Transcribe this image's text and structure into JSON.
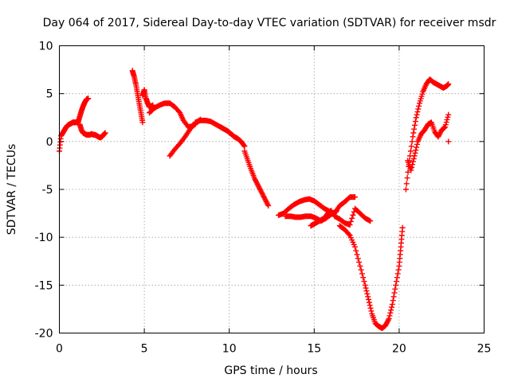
{
  "chart_data": {
    "type": "scatter",
    "title": "Day 064 of 2017, Sidereal Day-to-day VTEC variation (SDTVAR) for receiver msdr",
    "xlabel": "GPS time / hours",
    "ylabel": "SDTVAR / TECUs",
    "xlim": [
      0,
      25
    ],
    "ylim": [
      -20,
      10
    ],
    "xticks": [
      0,
      5,
      10,
      15,
      20,
      25
    ],
    "yticks": [
      -20,
      -15,
      -10,
      -5,
      0,
      5,
      10
    ],
    "grid": true,
    "marker": "plus",
    "color": "#ff0000",
    "segments": [
      {
        "x": [
          0.0,
          0.1,
          0.2,
          0.3,
          0.4,
          0.5,
          0.6,
          0.7,
          0.8,
          0.9,
          1.0,
          1.1
        ],
        "y": [
          -1.0,
          0.6,
          0.9,
          1.2,
          1.5,
          1.7,
          1.8,
          1.9,
          2.0,
          2.0,
          2.0,
          2.0
        ]
      },
      {
        "x": [
          1.1,
          1.2,
          1.3,
          1.4,
          1.5,
          1.6,
          1.7
        ],
        "y": [
          2.0,
          2.6,
          3.2,
          3.7,
          4.1,
          4.4,
          4.5
        ]
      },
      {
        "x": [
          1.2,
          1.3,
          1.4,
          1.5,
          1.6,
          1.7,
          1.8,
          1.9,
          2.0,
          2.1,
          2.2,
          2.3,
          2.4,
          2.5,
          2.6,
          2.7
        ],
        "y": [
          1.8,
          1.2,
          0.9,
          0.8,
          0.7,
          0.7,
          0.7,
          0.8,
          0.7,
          0.7,
          0.6,
          0.5,
          0.4,
          0.5,
          0.7,
          0.9
        ]
      },
      {
        "x": [
          4.3,
          4.4,
          4.5,
          4.6,
          4.7,
          4.8,
          4.9
        ],
        "y": [
          7.4,
          6.8,
          6.0,
          5.0,
          4.0,
          3.0,
          2.0
        ]
      },
      {
        "x": [
          4.9,
          5.0,
          5.1,
          5.2,
          5.3,
          5.5
        ],
        "y": [
          4.8,
          5.4,
          4.5,
          4.0,
          3.6,
          3.8
        ]
      },
      {
        "x": [
          5.3,
          5.6,
          5.9,
          6.2,
          6.5,
          6.8,
          7.1,
          7.3,
          7.6,
          7.8,
          8.0
        ],
        "y": [
          3.0,
          3.5,
          3.8,
          4.0,
          4.0,
          3.6,
          3.0,
          2.2,
          1.5,
          1.6,
          1.8
        ]
      },
      {
        "x": [
          6.5,
          6.8,
          7.1,
          7.4,
          7.7,
          8.0,
          8.3
        ],
        "y": [
          -1.5,
          -0.8,
          -0.2,
          0.5,
          1.3,
          1.9,
          2.3
        ]
      },
      {
        "x": [
          8.0,
          8.3,
          8.6,
          8.9,
          9.2,
          9.5
        ],
        "y": [
          2.0,
          2.2,
          2.2,
          2.1,
          1.8,
          1.5
        ]
      },
      {
        "x": [
          9.5,
          9.7,
          9.9,
          10.1,
          10.3,
          10.5,
          10.7,
          10.9
        ],
        "y": [
          1.5,
          1.3,
          1.1,
          0.8,
          0.5,
          0.3,
          0.0,
          -0.5
        ]
      },
      {
        "x": [
          10.9,
          11.1,
          11.3,
          11.5,
          11.7,
          11.9,
          12.1,
          12.3
        ],
        "y": [
          -1.0,
          -2.0,
          -3.0,
          -3.9,
          -4.6,
          -5.3,
          -6.0,
          -6.7
        ]
      },
      {
        "x": [
          12.9,
          13.2,
          13.5,
          13.8,
          14.1,
          14.4,
          14.7,
          15.0,
          15.3,
          15.6,
          15.9,
          16.2,
          16.5,
          16.8,
          17.1,
          17.4
        ],
        "y": [
          -7.7,
          -7.5,
          -7.0,
          -6.6,
          -6.3,
          -6.1,
          -6.0,
          -6.2,
          -6.6,
          -7.0,
          -7.3,
          -7.5,
          -6.7,
          -6.3,
          -5.8,
          -5.8
        ]
      },
      {
        "x": [
          13.3,
          13.6,
          13.9,
          14.2,
          14.5,
          14.8,
          15.1,
          15.4,
          15.7,
          16.0,
          16.3
        ],
        "y": [
          -7.8,
          -7.8,
          -7.9,
          -7.9,
          -7.8,
          -7.8,
          -8.0,
          -8.3,
          -8.0,
          -7.6,
          -7.3
        ]
      },
      {
        "x": [
          14.8,
          15.0,
          15.2,
          15.4,
          15.6,
          15.8,
          16.0
        ],
        "y": [
          -8.8,
          -8.6,
          -8.4,
          -8.2,
          -8.0,
          -7.5,
          -7.2
        ]
      },
      {
        "x": [
          16.2,
          16.5,
          16.8,
          17.1,
          17.4,
          17.7,
          18.0,
          18.3
        ],
        "y": [
          -7.8,
          -8.1,
          -8.5,
          -8.7,
          -7.0,
          -7.5,
          -8.0,
          -8.3
        ]
      },
      {
        "x": [
          16.5,
          16.8,
          17.1,
          17.4,
          17.7,
          18.0,
          18.2,
          18.4,
          18.6,
          18.8,
          19.0,
          19.2,
          19.4,
          19.6,
          19.8,
          20.0,
          20.1,
          20.2
        ],
        "y": [
          -8.8,
          -9.2,
          -9.8,
          -11.0,
          -13.0,
          -15.0,
          -16.5,
          -18.0,
          -19.0,
          -19.3,
          -19.5,
          -19.2,
          -18.5,
          -17.0,
          -15.0,
          -13.0,
          -11.0,
          -9.0
        ]
      },
      {
        "x": [
          20.4,
          20.6,
          20.8,
          21.0,
          21.2,
          21.4,
          21.6,
          21.8,
          22.0,
          22.2,
          22.4,
          22.6,
          22.8,
          22.9
        ],
        "y": [
          -5.0,
          -2.0,
          0.5,
          2.5,
          4.0,
          5.2,
          6.0,
          6.5,
          6.2,
          6.0,
          5.8,
          5.6,
          5.8,
          6.0
        ]
      },
      {
        "x": [
          20.5,
          20.7,
          20.9,
          21.1,
          21.3,
          21.5,
          21.7,
          21.9,
          22.1,
          22.3,
          22.5,
          22.7,
          22.9
        ],
        "y": [
          -2.0,
          -3.0,
          -1.5,
          0.0,
          0.8,
          1.2,
          1.8,
          2.0,
          1.0,
          0.5,
          1.2,
          1.5,
          2.8
        ]
      },
      {
        "x": [
          22.9
        ],
        "y": [
          0.0
        ]
      }
    ]
  }
}
